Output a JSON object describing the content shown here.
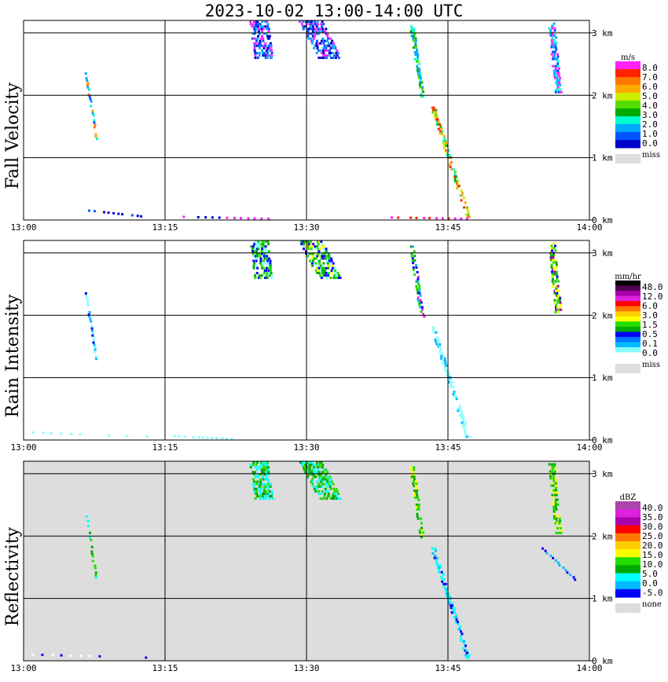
{
  "title": "2023-10-02  13:00-14:00 UTC",
  "chart_data": [
    {
      "type": "heatmap",
      "panel_label": "Fall Velocity",
      "x_ticks": [
        "13:00",
        "13:15",
        "13:30",
        "13:45",
        "14:00"
      ],
      "y_ticks": [
        "0 km",
        "1 km",
        "2 km",
        "3 km"
      ],
      "xlim": [
        0,
        60
      ],
      "ylim": [
        0,
        3.2
      ],
      "colorbar": {
        "unit": "m/s",
        "labels": [
          "8.0",
          "7.0",
          "6.0",
          "5.0",
          "4.0",
          "3.0",
          "2.0",
          "1.0",
          "0.0"
        ],
        "colors": [
          "#ff22ff",
          "#ff2200",
          "#ff7700",
          "#ffaa00",
          "#ccee00",
          "#55dd00",
          "#00aa00",
          "#00ffcc",
          "#00aaff",
          "#0055ff",
          "#0000cc"
        ],
        "miss_label": "miss",
        "miss_color": "#dddddd"
      },
      "background": "#ffffff",
      "features": [
        {
          "t0": 6.7,
          "h0": 2.35,
          "t1": 7.8,
          "h1": 1.3,
          "w": 0.35,
          "colors": [
            "#00ffcc",
            "#00aaff",
            "#0055ff",
            "#ffaa00",
            "#ff7700"
          ]
        },
        {
          "t0": 43.5,
          "h0": 1.8,
          "t1": 47.2,
          "h1": 0.05,
          "w": 0.6,
          "colors": [
            "#00ffcc",
            "#00aa00",
            "#55dd00",
            "#ccee00",
            "#ffaa00",
            "#ff7700",
            "#ff2200"
          ]
        },
        {
          "t0": 41.2,
          "h0": 3.1,
          "t1": 42.3,
          "h1": 1.98,
          "w": 0.5,
          "colors": [
            "#00ffcc",
            "#00aa00",
            "#55dd00",
            "#00aaff"
          ]
        },
        {
          "t0": 56.0,
          "h0": 3.15,
          "t1": 56.7,
          "h1": 2.05,
          "w": 0.7,
          "colors": [
            "#00aaff",
            "#00ffcc",
            "#0055ff",
            "#ff22ff"
          ]
        },
        {
          "t0": 25.0,
          "h0": 3.18,
          "t1": 25.5,
          "h1": 2.6,
          "w": 2.0,
          "colors": [
            "#0055ff",
            "#00aaff",
            "#0000cc",
            "#ff22ff"
          ]
        },
        {
          "t0": 30.5,
          "h0": 3.18,
          "t1": 32.5,
          "h1": 2.6,
          "w": 2.5,
          "colors": [
            "#0055ff",
            "#00aaff",
            "#0000cc",
            "#ff22ff"
          ]
        },
        {
          "t0": 7.0,
          "h0": 0.15,
          "t1": 13.0,
          "h1": 0.05,
          "w": 0.2,
          "colors": [
            "#0000cc",
            "#0055ff"
          ]
        },
        {
          "t0": 17.0,
          "h0": 0.05,
          "t1": 26.0,
          "h1": 0.02,
          "w": 0.15,
          "colors": [
            "#ff22ff",
            "#0000cc"
          ]
        },
        {
          "t0": 39.0,
          "h0": 0.04,
          "t1": 47.0,
          "h1": 0.02,
          "w": 0.12,
          "colors": [
            "#ff22ff",
            "#ff2200"
          ]
        }
      ]
    },
    {
      "type": "heatmap",
      "panel_label": "Rain Intensity",
      "x_ticks": [
        "13:00",
        "13:15",
        "13:30",
        "13:45",
        "14:00"
      ],
      "y_ticks": [
        "0 km",
        "1 km",
        "2 km",
        "3 km"
      ],
      "xlim": [
        0,
        60
      ],
      "ylim": [
        0,
        3.2
      ],
      "colorbar": {
        "unit": "mm/hr",
        "labels": [
          "48.0",
          "12.0",
          "6.0",
          "3.0",
          "1.5",
          "0.5",
          "0.1",
          "0.0"
        ],
        "colors": [
          "#000000",
          "#550055",
          "#aa00aa",
          "#dd22dd",
          "#ff0000",
          "#ff7700",
          "#ffcc00",
          "#ffff00",
          "#22dd00",
          "#00aa00",
          "#0000ff",
          "#0077ff",
          "#00bbff",
          "#88ffff",
          "#ffffff"
        ],
        "miss_label": "miss",
        "miss_color": "#dddddd"
      },
      "background": "#ffffff",
      "features": [
        {
          "t0": 6.7,
          "h0": 2.35,
          "t1": 7.8,
          "h1": 1.3,
          "w": 0.35,
          "colors": [
            "#88ffff",
            "#0000ff",
            "#00bbff"
          ]
        },
        {
          "t0": 43.5,
          "h0": 1.8,
          "t1": 47.2,
          "h1": 0.05,
          "w": 0.6,
          "colors": [
            "#88ffff",
            "#88ffff",
            "#00bbff"
          ]
        },
        {
          "t0": 41.2,
          "h0": 3.1,
          "t1": 42.3,
          "h1": 1.98,
          "w": 0.5,
          "colors": [
            "#0000ff",
            "#00aa00",
            "#22dd00",
            "#dd22dd",
            "#00bbff"
          ]
        },
        {
          "t0": 56.0,
          "h0": 3.15,
          "t1": 56.7,
          "h1": 2.05,
          "w": 0.7,
          "colors": [
            "#0000ff",
            "#00aa00",
            "#22dd00",
            "#ffff00",
            "#aa00aa"
          ]
        },
        {
          "t0": 25.0,
          "h0": 3.18,
          "t1": 25.5,
          "h1": 2.6,
          "w": 2.0,
          "colors": [
            "#0000ff",
            "#00aa00",
            "#22dd00",
            "#88ffff"
          ]
        },
        {
          "t0": 30.5,
          "h0": 3.18,
          "t1": 32.5,
          "h1": 2.6,
          "w": 2.5,
          "colors": [
            "#0000ff",
            "#00aa00",
            "#22dd00",
            "#ffff00",
            "#88ffff"
          ]
        },
        {
          "t0": 1.0,
          "h0": 0.12,
          "t1": 13.0,
          "h1": 0.05,
          "w": 0.2,
          "colors": [
            "#88ffff"
          ]
        },
        {
          "t0": 16.0,
          "h0": 0.06,
          "t1": 22.0,
          "h1": 0.02,
          "w": 0.15,
          "colors": [
            "#88ffff"
          ]
        }
      ]
    },
    {
      "type": "heatmap",
      "panel_label": "Reflectivity",
      "x_ticks": [
        "13:00",
        "13:15",
        "13:30",
        "13:45",
        "14:00"
      ],
      "y_ticks": [
        "0 km",
        "1 km",
        "2 km",
        "3 km"
      ],
      "xlim": [
        0,
        60
      ],
      "ylim": [
        0,
        3.2
      ],
      "colorbar": {
        "unit": "dBZ",
        "labels": [
          "40.0",
          "35.0",
          "30.0",
          "25.0",
          "20.0",
          "15.0",
          "10.0",
          "5.0",
          "0.0",
          "-5.0"
        ],
        "colors": [
          "#aa44aa",
          "#dd22dd",
          "#aa00aa",
          "#ff0000",
          "#ff7700",
          "#ffcc00",
          "#ffff00",
          "#22dd00",
          "#00aa00",
          "#00ffff",
          "#00bbff",
          "#0000ff"
        ],
        "miss_label": "none",
        "miss_color": "#dddddd"
      },
      "background": "#dddddd",
      "features": [
        {
          "t0": 6.7,
          "h0": 2.35,
          "t1": 7.8,
          "h1": 1.3,
          "w": 0.35,
          "colors": [
            "#22dd00",
            "#00aa00",
            "#00ffff"
          ]
        },
        {
          "t0": 43.5,
          "h0": 1.8,
          "t1": 47.2,
          "h1": 0.05,
          "w": 0.6,
          "colors": [
            "#00ffff",
            "#00bbff",
            "#0000ff",
            "#00ffff"
          ]
        },
        {
          "t0": 41.2,
          "h0": 3.1,
          "t1": 42.3,
          "h1": 1.98,
          "w": 0.5,
          "colors": [
            "#22dd00",
            "#ffff00",
            "#00aa00"
          ]
        },
        {
          "t0": 56.0,
          "h0": 3.15,
          "t1": 56.7,
          "h1": 2.05,
          "w": 0.7,
          "colors": [
            "#22dd00",
            "#ffff00",
            "#00aa00"
          ]
        },
        {
          "t0": 25.0,
          "h0": 3.18,
          "t1": 25.5,
          "h1": 2.6,
          "w": 2.0,
          "colors": [
            "#00ffff",
            "#22dd00",
            "#00aa00"
          ]
        },
        {
          "t0": 30.5,
          "h0": 3.18,
          "t1": 32.5,
          "h1": 2.6,
          "w": 2.5,
          "colors": [
            "#00ffff",
            "#22dd00",
            "#00aa00"
          ]
        },
        {
          "t0": 1.0,
          "h0": 0.1,
          "t1": 13.0,
          "h1": 0.05,
          "w": 0.2,
          "colors": [
            "#ffffff",
            "#0000ff"
          ]
        },
        {
          "t0": 55.0,
          "h0": 1.8,
          "t1": 58.5,
          "h1": 1.3,
          "w": 0.2,
          "colors": [
            "#0000ff",
            "#00bbff"
          ]
        }
      ]
    }
  ]
}
